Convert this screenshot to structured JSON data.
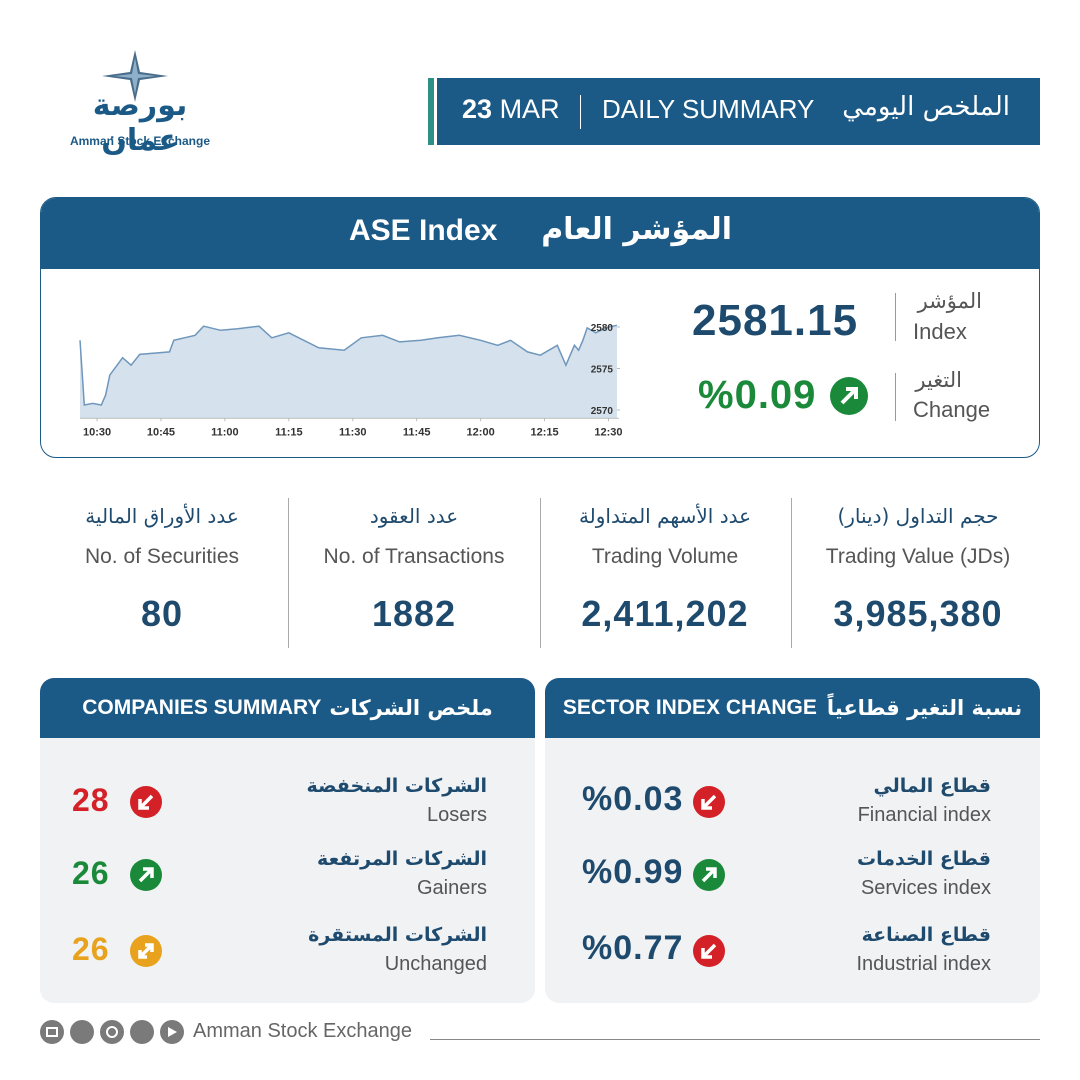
{
  "logo": {
    "name_ar": "بورصة عمان",
    "name_en": "Amman Stock Exchange"
  },
  "header": {
    "day": "23",
    "month": "MAR",
    "title_en": "DAILY SUMMARY",
    "title_ar": "الملخص اليومي"
  },
  "index_panel": {
    "title_ar": "المؤشر العام",
    "title_en": "ASE Index",
    "index_label_ar": "المؤشر",
    "index_label_en": "Index",
    "index_value": "2581.15",
    "change_label_ar": "التغير",
    "change_label_en": "Change",
    "change": "%0.09"
  },
  "chart_data": {
    "type": "area",
    "x": [
      626,
      627,
      629,
      631,
      632,
      633,
      636,
      638,
      640,
      647,
      648,
      653,
      655,
      659,
      663,
      668,
      671,
      675,
      682,
      688,
      692,
      697,
      701,
      706,
      710,
      715,
      720,
      724,
      727,
      731,
      734,
      738,
      740,
      742,
      743,
      744,
      745,
      747,
      750,
      752
    ],
    "values": [
      2578.4,
      2570.6,
      2570.8,
      2570.6,
      2571.8,
      2574.2,
      2576.3,
      2575.4,
      2576.7,
      2577.0,
      2578.4,
      2579.0,
      2580.1,
      2579.6,
      2579.8,
      2580.1,
      2578.7,
      2579.3,
      2577.5,
      2577.2,
      2578.7,
      2579.0,
      2578.2,
      2578.4,
      2578.7,
      2579.0,
      2578.4,
      2577.8,
      2578.4,
      2577.0,
      2576.6,
      2577.8,
      2575.4,
      2577.8,
      2577.2,
      2578.4,
      2579.9,
      2579.3,
      2580.0,
      2580.2
    ],
    "xlim": [
      626,
      752
    ],
    "xticks": [
      {
        "value": 630,
        "label": "10:30"
      },
      {
        "value": 645,
        "label": "10:45"
      },
      {
        "value": 660,
        "label": "11:00"
      },
      {
        "value": 675,
        "label": "11:15"
      },
      {
        "value": 690,
        "label": "11:30"
      },
      {
        "value": 705,
        "label": "11:45"
      },
      {
        "value": 720,
        "label": "12:00"
      },
      {
        "value": 735,
        "label": "12:15"
      },
      {
        "value": 750,
        "label": "12:30"
      }
    ],
    "ylim": [
      2569,
      2581
    ],
    "yticks": [
      2570,
      2575,
      2580
    ],
    "color": "#6f97bb",
    "fill": "#d5e2ed"
  },
  "stats": [
    {
      "label_ar": "عدد الأوراق المالية",
      "label_en": "No. of Securities",
      "value": "80"
    },
    {
      "label_ar": "عدد العقود",
      "label_en": "No. of Transactions",
      "value": "1882"
    },
    {
      "label_ar": "عدد الأسهم المتداولة",
      "label_en": "Trading Volume",
      "value": "2,411,202"
    },
    {
      "label_ar": "حجم التداول (دينار)",
      "label_en": "Trading Value (JDs)",
      "value": "3,985,380"
    }
  ],
  "companies": {
    "title_en": "COMPANIES SUMMARY",
    "title_ar": "ملخص الشركات",
    "rows": [
      {
        "label_ar": "الشركات المنخفضة",
        "label_en": "Losers",
        "value": "28"
      },
      {
        "label_ar": "الشركات المرتفعة",
        "label_en": "Gainers",
        "value": "26"
      },
      {
        "label_ar": "الشركات المستقرة",
        "label_en": "Unchanged",
        "value": "26"
      }
    ]
  },
  "sectors": {
    "title_en": "SECTOR INDEX CHANGE",
    "title_ar": "نسبة التغير قطاعياً",
    "rows": [
      {
        "label_ar": "قطاع المالي",
        "label_en": "Financial index",
        "value": "%0.03"
      },
      {
        "label_ar": "قطاع الخدمات",
        "label_en": "Services index",
        "value": "%0.99"
      },
      {
        "label_ar": "قطاع الصناعة",
        "label_en": "Industrial index",
        "value": "%0.77"
      }
    ]
  },
  "footer": {
    "text": "Amman Stock Exchange"
  }
}
